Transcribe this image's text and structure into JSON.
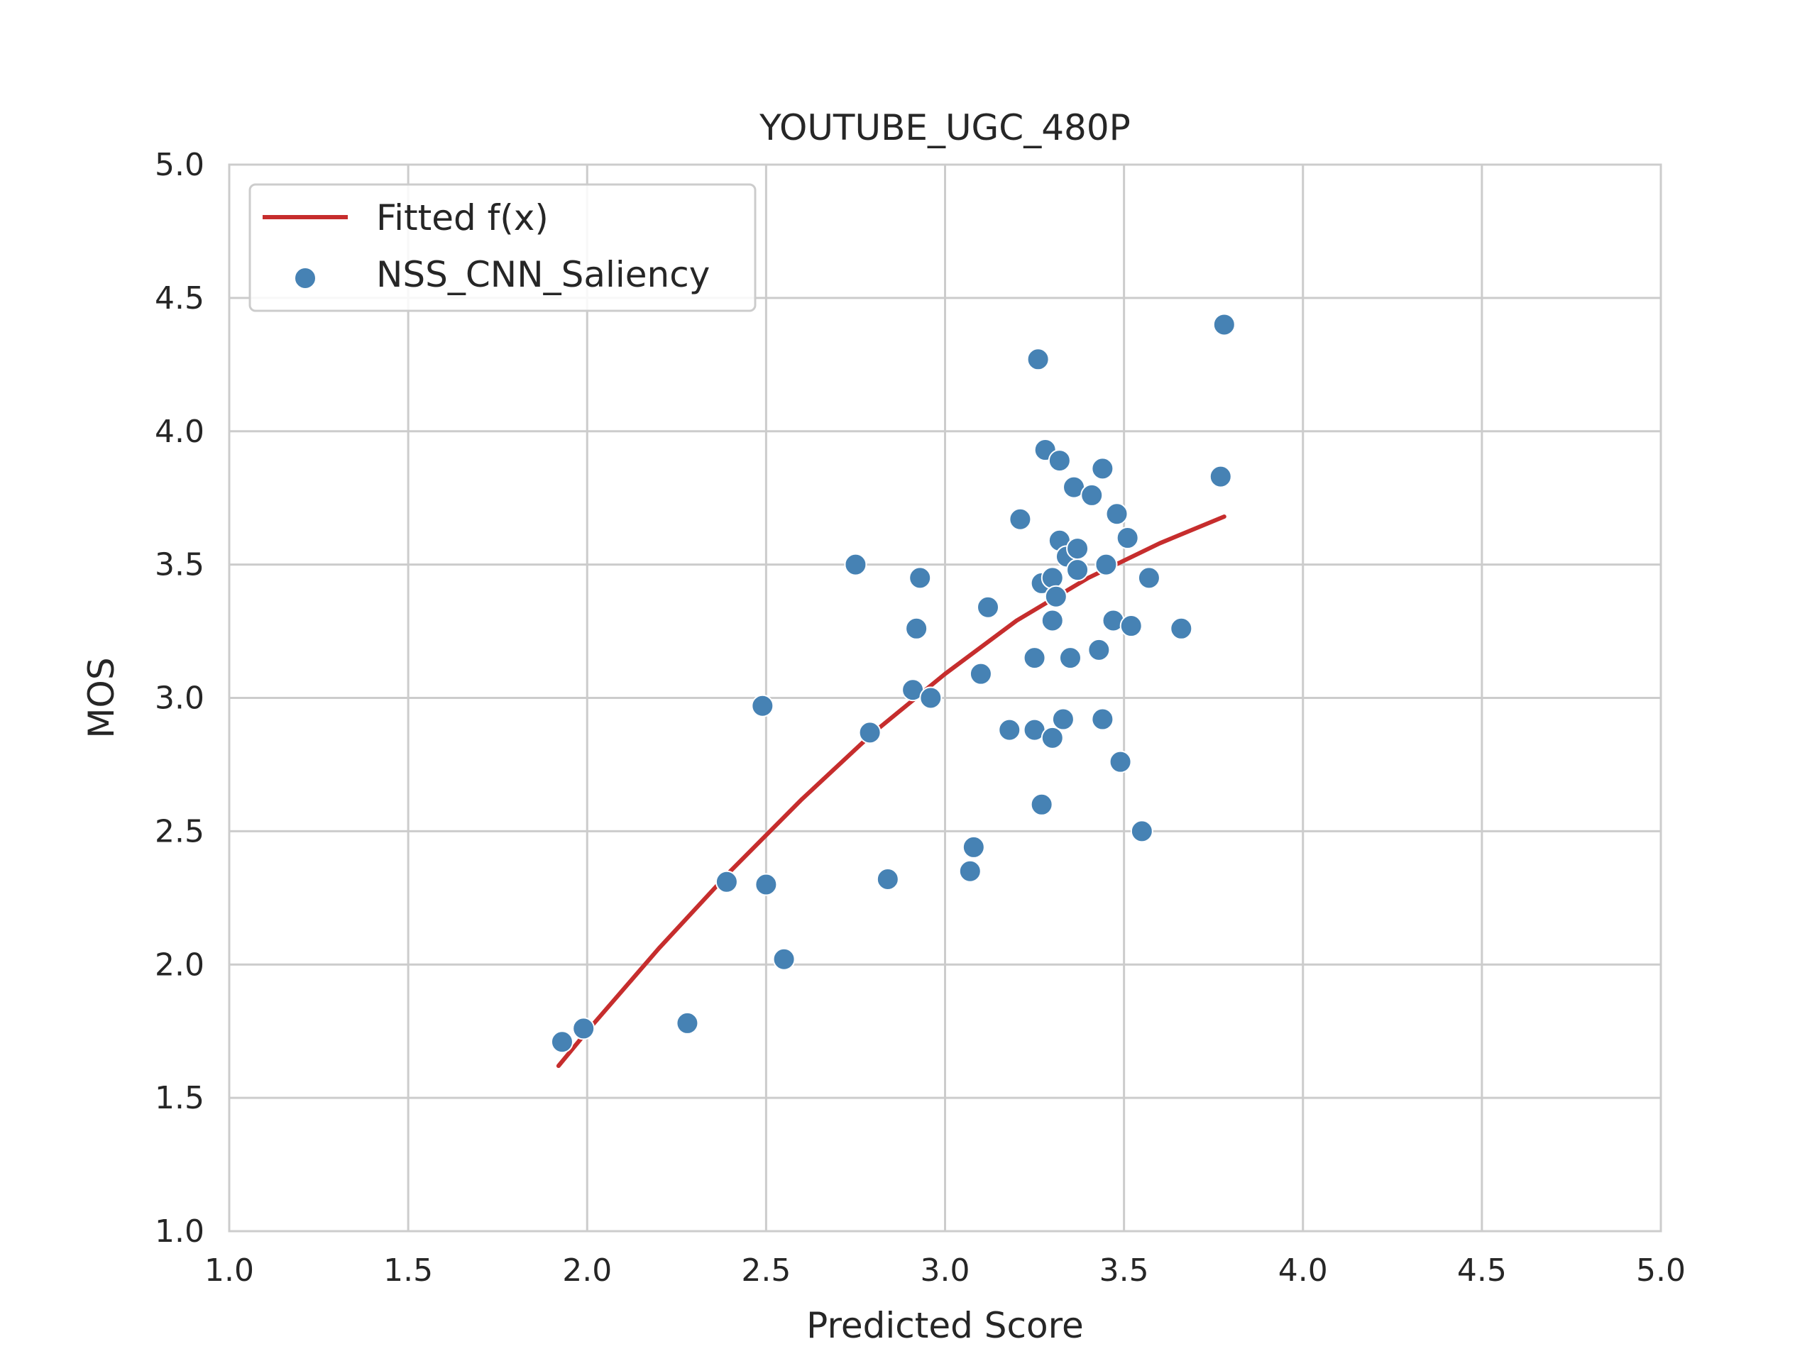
{
  "chart_data": {
    "type": "scatter",
    "title": "YOUTUBE_UGC_480P",
    "xlabel": "Predicted Score",
    "ylabel": "MOS",
    "xlim": [
      1.0,
      5.0
    ],
    "ylim": [
      1.0,
      5.0
    ],
    "xticks": [
      "1.0",
      "1.5",
      "2.0",
      "2.5",
      "3.0",
      "3.5",
      "4.0",
      "4.5",
      "5.0"
    ],
    "yticks": [
      "1.0",
      "1.5",
      "2.0",
      "2.5",
      "3.0",
      "3.5",
      "4.0",
      "4.5",
      "5.0"
    ],
    "grid": true,
    "legend_position": "top-left",
    "series": [
      {
        "name": "Fitted f(x)",
        "kind": "line",
        "color": "#c62d2d",
        "x": [
          1.92,
          2.0,
          2.2,
          2.4,
          2.6,
          2.8,
          3.0,
          3.2,
          3.4,
          3.6,
          3.78
        ],
        "y": [
          1.62,
          1.75,
          2.06,
          2.35,
          2.62,
          2.87,
          3.09,
          3.29,
          3.45,
          3.58,
          3.68
        ]
      },
      {
        "name": "NSS_CNN_Saliency",
        "kind": "scatter",
        "color": "#4682b4",
        "x": [
          1.93,
          1.99,
          2.28,
          2.39,
          2.49,
          2.5,
          2.55,
          2.75,
          2.79,
          2.84,
          2.91,
          2.92,
          2.93,
          2.96,
          3.07,
          3.08,
          3.1,
          3.12,
          3.18,
          3.21,
          3.25,
          3.25,
          3.26,
          3.27,
          3.27,
          3.28,
          3.3,
          3.3,
          3.3,
          3.31,
          3.32,
          3.32,
          3.33,
          3.34,
          3.35,
          3.36,
          3.37,
          3.37,
          3.41,
          3.43,
          3.44,
          3.44,
          3.45,
          3.45,
          3.47,
          3.48,
          3.49,
          3.51,
          3.52,
          3.55,
          3.57,
          3.66,
          3.77,
          3.78
        ],
        "y": [
          1.71,
          1.76,
          1.78,
          2.31,
          2.97,
          2.3,
          2.02,
          3.5,
          2.87,
          2.32,
          3.03,
          3.26,
          3.45,
          3.0,
          2.35,
          2.44,
          3.09,
          3.34,
          2.88,
          3.67,
          3.15,
          2.88,
          4.27,
          2.6,
          3.43,
          3.93,
          2.85,
          3.29,
          3.45,
          3.38,
          3.59,
          3.89,
          2.92,
          3.53,
          3.15,
          3.79,
          3.48,
          3.56,
          3.76,
          3.18,
          3.86,
          2.92,
          3.5,
          3.5,
          3.29,
          3.69,
          2.76,
          3.6,
          3.27,
          2.5,
          3.45,
          3.26,
          3.83,
          4.4
        ]
      }
    ]
  }
}
